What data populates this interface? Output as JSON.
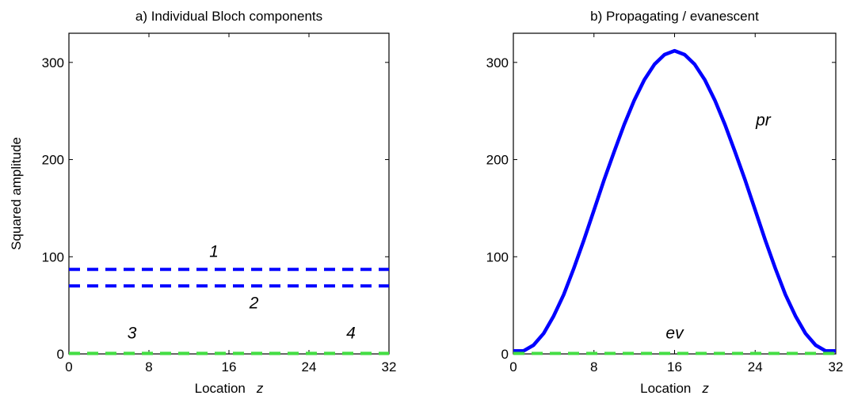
{
  "chart_data": [
    {
      "type": "line",
      "title": "a) Individual Bloch components",
      "xlabel": "Location",
      "xlabel_var": "z",
      "ylabel": "Squared amplitude",
      "xlim": [
        0,
        32
      ],
      "ylim": [
        0,
        330
      ],
      "xticks": [
        0,
        8,
        16,
        24,
        32
      ],
      "yticks": [
        0,
        100,
        200,
        300
      ],
      "grid": false,
      "series": [
        {
          "name": "1",
          "color": "#0000ff",
          "style": "dashed",
          "x": [
            0,
            32
          ],
          "y": [
            87,
            87
          ]
        },
        {
          "name": "2",
          "color": "#0000ff",
          "style": "dashed",
          "x": [
            0,
            32
          ],
          "y": [
            70,
            70
          ]
        },
        {
          "name": "3",
          "color": "#44dd44",
          "style": "dashed",
          "x": [
            0,
            32
          ],
          "y": [
            0.5,
            0.5
          ]
        },
        {
          "name": "4",
          "color": "#44dd44",
          "style": "dashed",
          "x": [
            0,
            32
          ],
          "y": [
            0.5,
            0.5
          ]
        }
      ],
      "annotations": [
        {
          "text": "1",
          "x": 14.5,
          "y": 100
        },
        {
          "text": "2",
          "x": 18.5,
          "y": 47
        },
        {
          "text": "3",
          "x": 6.3,
          "y": 16
        },
        {
          "text": "4",
          "x": 28.2,
          "y": 16
        }
      ]
    },
    {
      "type": "line",
      "title": "b) Propagating / evanescent",
      "xlabel": "Location",
      "xlabel_var": "z",
      "ylabel": "",
      "xlim": [
        0,
        32
      ],
      "ylim": [
        0,
        330
      ],
      "xticks": [
        0,
        8,
        16,
        24,
        32
      ],
      "yticks": [
        0,
        100,
        200,
        300
      ],
      "grid": false,
      "series": [
        {
          "name": "pr",
          "color": "#0000ff",
          "style": "solid",
          "x": [
            0,
            1,
            2,
            3,
            4,
            5,
            6,
            7,
            8,
            9,
            10,
            11,
            12,
            13,
            14,
            15,
            16,
            17,
            18,
            19,
            20,
            21,
            22,
            23,
            24,
            25,
            26,
            27,
            28,
            29,
            30,
            31,
            32
          ],
          "y": [
            3,
            3,
            9,
            21,
            39,
            61,
            88,
            117,
            148,
            179,
            208,
            236,
            261,
            282,
            298,
            308,
            312,
            308,
            298,
            282,
            261,
            236,
            208,
            179,
            148,
            117,
            88,
            61,
            39,
            21,
            9,
            3,
            3
          ]
        },
        {
          "name": "ev",
          "color": "#44dd44",
          "style": "dashed",
          "x": [
            0,
            32
          ],
          "y": [
            0.5,
            0.5
          ]
        }
      ],
      "annotations": [
        {
          "text": "pr",
          "x": 24.8,
          "y": 235
        },
        {
          "text": "ev",
          "x": 16,
          "y": 16
        }
      ]
    }
  ]
}
